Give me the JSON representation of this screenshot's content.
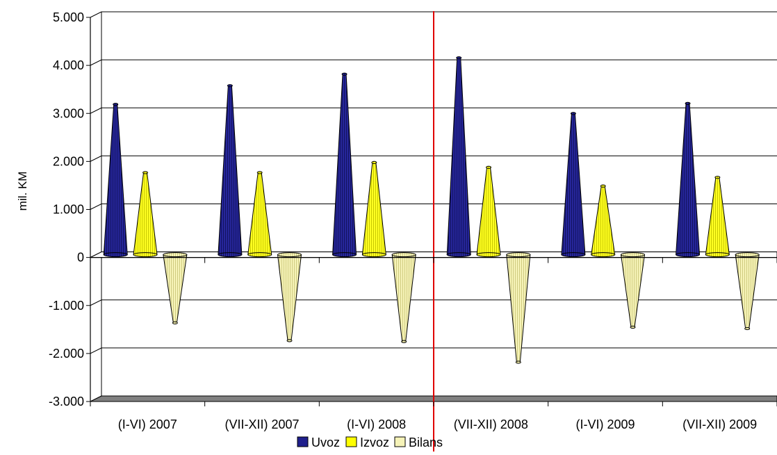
{
  "chart_data": {
    "type": "bar",
    "style": "3d-cone",
    "ylabel": "mil. KM",
    "xlabel": "",
    "ylim": [
      -3000,
      5000
    ],
    "yticks": [
      5000,
      4000,
      3000,
      2000,
      1000,
      0,
      -1000,
      -2000,
      -3000
    ],
    "ytick_labels": [
      "5.000",
      "4.000",
      "3.000",
      "2.000",
      "1.000",
      "0",
      "-1.000",
      "-2.000",
      "-3.000"
    ],
    "categories": [
      "(I-VI) 2007",
      "(VII-XII) 2007",
      "(I-VI) 2008",
      "(VII-XII) 2008",
      "(I-VI) 2009",
      "(VII-XII) 2009"
    ],
    "series": [
      {
        "name": "Uvoz",
        "color": "#1f1f8c",
        "values": [
          3130,
          3520,
          3760,
          4100,
          2940,
          3150
        ]
      },
      {
        "name": "Izvoz",
        "color": "#ffff00",
        "values": [
          1710,
          1710,
          1920,
          1820,
          1430,
          1610
        ]
      },
      {
        "name": "Bilans",
        "color": "#f2efab",
        "values": [
          -1420,
          -1790,
          -1810,
          -2240,
          -1510,
          -1540
        ]
      }
    ],
    "grid": true,
    "legend": "bottom",
    "reference_line_color": "#e00000"
  }
}
